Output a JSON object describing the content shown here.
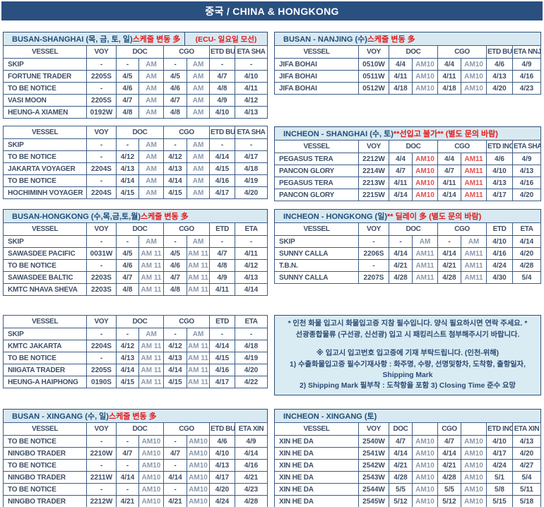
{
  "banner": {
    "title": "중국 / CHINA & HONGKONG"
  },
  "colors": {
    "banner_bg": "#2a5080",
    "title_bar_bg": "#d9e9f2",
    "notes_bg": "#d9ecf4",
    "heading_navy": "#1f4e79",
    "warning_red": "#e01b1b",
    "cell_text": "#3e4f68",
    "muted_time_text": "#8b99ac",
    "red_time_text": "#e05050",
    "grid_border": "#3c5c86"
  },
  "tables": [
    {
      "id": "bs1",
      "title": {
        "parts": [
          {
            "text": "BUSAN-SHANGHAI (목, 금, 토, 일) ",
            "red": false
          },
          {
            "text": "스케줄 변동 多",
            "red": true
          }
        ],
        "extra": "(ECU- 일요일 모선)"
      },
      "headers": [
        "VESSEL",
        "VOY",
        "DOC",
        "CGO",
        "ETD BUS",
        "ETA SHA"
      ],
      "time_style": "muted",
      "rows": [
        [
          "SKIP",
          "-",
          "-",
          "AM",
          "-",
          "AM",
          "-",
          "-"
        ],
        [
          "FORTUNE TRADER",
          "2205S",
          "4/5",
          "AM",
          "4/5",
          "AM",
          "4/7",
          "4/10"
        ],
        [
          "TO BE NOTICE",
          "-",
          "4/6",
          "AM",
          "4/6",
          "AM",
          "4/8",
          "4/11"
        ],
        [
          "VASI MOON",
          "2205S",
          "4/7",
          "AM",
          "4/7",
          "AM",
          "4/9",
          "4/12"
        ],
        [
          "HEUNG-A XIAMEN",
          "0192W",
          "4/8",
          "AM",
          "4/8",
          "AM",
          "4/10",
          "4/13"
        ]
      ]
    },
    {
      "id": "bs2",
      "title": null,
      "headers": [
        "VESSEL",
        "VOY",
        "DOC",
        "CGO",
        "ETD BUS",
        "ETA SHA"
      ],
      "time_style": "muted",
      "rows": [
        [
          "SKIP",
          "-",
          "-",
          "AM",
          "-",
          "AM",
          "-",
          "-"
        ],
        [
          "TO BE NOTICE",
          "-",
          "4/12",
          "AM",
          "4/12",
          "AM",
          "4/14",
          "4/17"
        ],
        [
          "JAKARTA VOYAGER",
          "2204S",
          "4/13",
          "AM",
          "4/13",
          "AM",
          "4/15",
          "4/18"
        ],
        [
          "TO BE NOTICE",
          "-",
          "4/14",
          "AM",
          "4/14",
          "AM",
          "4/16",
          "4/19"
        ],
        [
          "HOCHIMINH VOYAGER",
          "2204S",
          "4/15",
          "AM",
          "4/15",
          "AM",
          "4/17",
          "4/20"
        ]
      ]
    },
    {
      "id": "bhk1",
      "title": {
        "parts": [
          {
            "text": "BUSAN-HONGKONG (수,목,금,토,월) ",
            "red": false
          },
          {
            "text": "스케줄 변동 多",
            "red": true
          }
        ],
        "extra": null
      },
      "headers": [
        "VESSEL",
        "VOY",
        "DOC",
        "CGO",
        "ETD",
        "ETA"
      ],
      "time_style": "muted",
      "rows": [
        [
          "SKIP",
          "-",
          "-",
          "AM",
          "-",
          "AM",
          "-",
          "-"
        ],
        [
          "SAWASDEE PACIFIC",
          "0031W",
          "4/5",
          "AM 11",
          "4/5",
          "AM 11",
          "4/7",
          "4/11"
        ],
        [
          "TO BE NOTICE",
          "-",
          "4/6",
          "AM 11",
          "4/6",
          "AM 11",
          "4/8",
          "4/12"
        ],
        [
          "SAWASDEE BALTIC",
          "2203S",
          "4/7",
          "AM 11",
          "4/7",
          "AM 11",
          "4/9",
          "4/13"
        ],
        [
          "KMTC NHAVA SHEVA",
          "2203S",
          "4/8",
          "AM 11",
          "4/8",
          "AM 11",
          "4/11",
          "4/14"
        ]
      ]
    },
    {
      "id": "bhk2",
      "title": null,
      "headers": [
        "VESSEL",
        "VOY",
        "DOC",
        "CGO",
        "ETD",
        "ETA"
      ],
      "time_style": "muted",
      "rows": [
        [
          "SKIP",
          "-",
          "-",
          "AM",
          "-",
          "AM",
          "-",
          "-"
        ],
        [
          "KMTC JAKARTA",
          "2204S",
          "4/12",
          "AM 11",
          "4/12",
          "AM 11",
          "4/14",
          "4/18"
        ],
        [
          "TO BE NOTICE",
          "-",
          "4/13",
          "AM 11",
          "4/13",
          "AM 11",
          "4/15",
          "4/19"
        ],
        [
          "NIIGATA TRADER",
          "2205S",
          "4/14",
          "AM 11",
          "4/14",
          "AM 11",
          "4/16",
          "4/20"
        ],
        [
          "HEUNG-A HAIPHONG",
          "0190S",
          "4/15",
          "AM 11",
          "4/15",
          "AM 11",
          "4/17",
          "4/22"
        ]
      ]
    },
    {
      "id": "bxg",
      "title": {
        "parts": [
          {
            "text": "BUSAN - XINGANG (수, 일) ",
            "red": false
          },
          {
            "text": "스케줄 변동 多",
            "red": true
          }
        ],
        "extra": null
      },
      "headers": [
        "VESSEL",
        "VOY",
        "DOC",
        "CGO",
        "ETD BUS",
        "ETA XIN"
      ],
      "time_style": "muted",
      "rows": [
        [
          "TO BE NOTICE",
          "-",
          "-",
          "AM10",
          "-",
          "AM10",
          "4/6",
          "4/9"
        ],
        [
          "NINGBO TRADER",
          "2210W",
          "4/7",
          "AM10",
          "4/7",
          "AM10",
          "4/10",
          "4/14"
        ],
        [
          "TO BE NOTICE",
          "-",
          "-",
          "AM10",
          "-",
          "AM10",
          "4/13",
          "4/16"
        ],
        [
          "NINGBO TRADER",
          "2211W",
          "4/14",
          "AM10",
          "4/14",
          "AM10",
          "4/17",
          "4/21"
        ],
        [
          "TO BE NOTICE",
          "-",
          "-",
          "AM10",
          "-",
          "AM10",
          "4/20",
          "4/23"
        ],
        [
          "NINGBO TRADER",
          "2212W",
          "4/21",
          "AM10",
          "4/21",
          "AM10",
          "4/24",
          "4/28"
        ]
      ]
    },
    {
      "id": "bnj",
      "title": {
        "parts": [
          {
            "text": "BUSAN - NANJING (수) ",
            "red": false
          },
          {
            "text": "스케줄 변동 多",
            "red": true
          }
        ],
        "extra": null
      },
      "headers": [
        "VESSEL",
        "VOY",
        "DOC",
        "CGO",
        "ETD BUS",
        "ETA NNJ"
      ],
      "time_style": "muted",
      "rows": [
        [
          "JIFA BOHAI",
          "0510W",
          "4/4",
          "AM10",
          "4/4",
          "AM10",
          "4/6",
          "4/9"
        ],
        [
          "JIFA BOHAI",
          "0511W",
          "4/11",
          "AM10",
          "4/11",
          "AM10",
          "4/13",
          "4/16"
        ],
        [
          "JIFA BOHAI",
          "0512W",
          "4/18",
          "AM10",
          "4/18",
          "AM10",
          "4/20",
          "4/23"
        ]
      ]
    },
    {
      "id": "ish",
      "title": {
        "parts": [
          {
            "text": "INCHEON - SHANGHAI (수, 토) ",
            "red": false
          },
          {
            "text": "**선입고 불가** (별도 문의 바람)",
            "red": true
          }
        ],
        "extra": null
      },
      "headers": [
        "VESSEL",
        "VOY",
        "DOC",
        "CGO",
        "ETD INC",
        "ETA SHA"
      ],
      "time_style": "red",
      "rows": [
        [
          "PEGASUS TERA",
          "2212W",
          "4/4",
          "AM10",
          "4/4",
          "AM11",
          "4/6",
          "4/9"
        ],
        [
          "PANCON GLORY",
          "2214W",
          "4/7",
          "AM10",
          "4/7",
          "AM11",
          "4/10",
          "4/13"
        ],
        [
          "PEGASUS TERA",
          "2213W",
          "4/11",
          "AM10",
          "4/11",
          "AM11",
          "4/13",
          "4/16"
        ],
        [
          "PANCON GLORY",
          "2215W",
          "4/14",
          "AM10",
          "4/14",
          "AM11",
          "4/17",
          "4/20"
        ]
      ]
    },
    {
      "id": "ihk",
      "title": {
        "parts": [
          {
            "text": "INCHEON - HONGKONG (일) ",
            "red": false
          },
          {
            "text": "** 딜레이 多 (별도 문의 바람)",
            "red": true
          }
        ],
        "extra": null
      },
      "headers": [
        "VESSEL",
        "VOY",
        "DOC",
        "CGO",
        "ETD",
        "ETA"
      ],
      "time_style": "muted",
      "rows": [
        [
          "SKIP",
          "-",
          "-",
          "AM",
          "-",
          "AM",
          "4/10",
          "4/14"
        ],
        [
          "SUNNY CALLA",
          "2206S",
          "4/14",
          "AM11",
          "4/14",
          "AM11",
          "4/16",
          "4/20"
        ],
        [
          "T.B.N.",
          "-",
          "4/21",
          "AM11",
          "4/21",
          "AM11",
          "4/24",
          "4/28"
        ],
        [
          "SUNNY CALLA",
          "2207S",
          "4/28",
          "AM11",
          "4/28",
          "AM11",
          "4/30",
          "5/4"
        ]
      ]
    },
    {
      "id": "ixg",
      "title": {
        "parts": [
          {
            "text": "INCHEON - XINGANG (토)",
            "red": false
          }
        ],
        "extra": null
      },
      "split_header": true,
      "headers": [
        "VESSEL",
        "VOY",
        "DOC",
        "",
        "CGO",
        "",
        "ETD INC",
        "ETA XIN"
      ],
      "time_style": "muted",
      "rows": [
        [
          "XIN HE DA",
          "2540W",
          "4/7",
          "AM10",
          "4/7",
          "AM10",
          "4/10",
          "4/13"
        ],
        [
          "XIN HE DA",
          "2541W",
          "4/14",
          "AM10",
          "4/14",
          "AM10",
          "4/17",
          "4/20"
        ],
        [
          "XIN HE DA",
          "2542W",
          "4/21",
          "AM10",
          "4/21",
          "AM10",
          "4/24",
          "4/27"
        ],
        [
          "XIN HE DA",
          "2543W",
          "4/28",
          "AM10",
          "4/28",
          "AM10",
          "5/1",
          "5/4"
        ],
        [
          "XIN HE DA",
          "2544W",
          "5/5",
          "AM10",
          "5/5",
          "AM10",
          "5/8",
          "5/11"
        ],
        [
          "XIN HE DA",
          "2545W",
          "5/12",
          "AM10",
          "5/12",
          "AM10",
          "5/15",
          "5/18"
        ]
      ]
    }
  ],
  "notes": {
    "lines": [
      "* 인천 화물 입고시 화물입고증 지참 필수입니다. 양식 필요하시면 연락 주세요. *",
      "선광종합물류 (구선광, 신선광) 입고 시 패킹리스트 첨부해주시기 바랍니다.",
      "※ 입고시 입고번호 입고증에 기재 부탁드립니다. (인천-위해)",
      "1) 수출화물입고증 필수기재사항 : 화주명, 수량, 선명및항차, 도착항, 출항일자, Shipping Mark",
      "2) Shipping Mark 필부착 : 도착항을 포함  3) Closing Time 준수 요망"
    ]
  }
}
